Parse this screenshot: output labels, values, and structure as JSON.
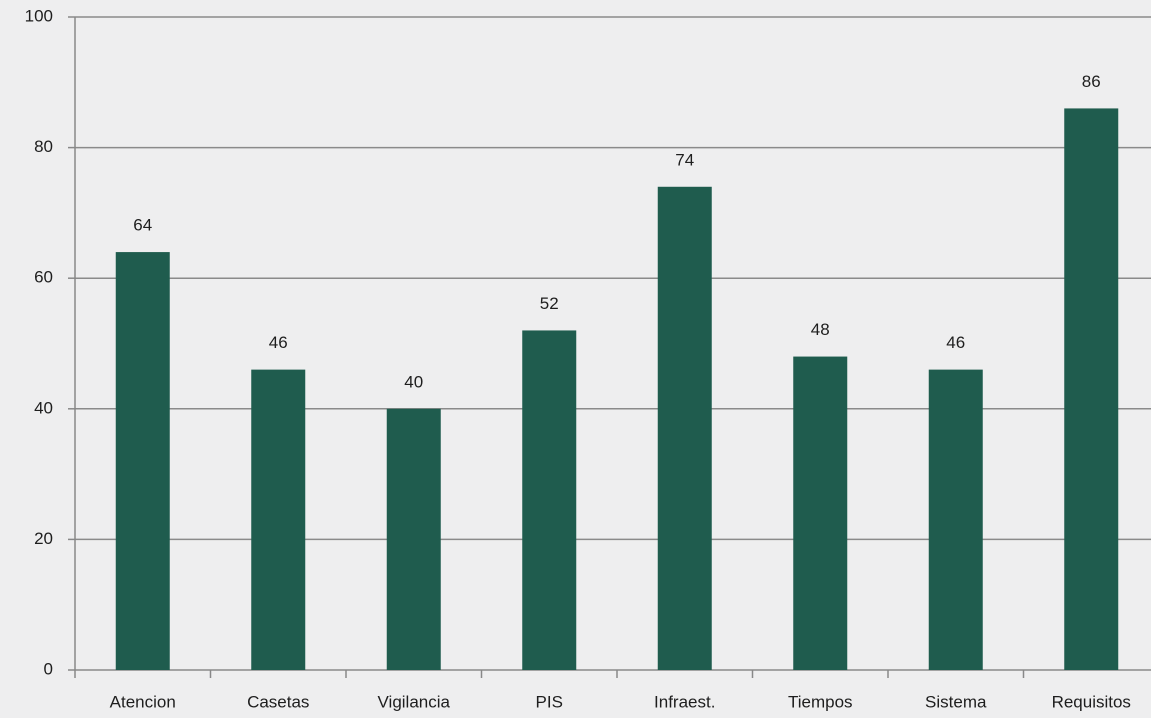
{
  "chart_data": {
    "type": "bar",
    "categories": [
      "Atencion",
      "Casetas",
      "Vigilancia",
      "PIS",
      "Infraest.",
      "Tiempos",
      "Sistema",
      "Requisitos"
    ],
    "values": [
      64,
      46,
      40,
      52,
      74,
      48,
      46,
      86
    ],
    "color": "#1f5c4e",
    "ylim": [
      0,
      100
    ],
    "yticks": [
      0,
      20,
      40,
      60,
      80,
      100
    ],
    "grid": true
  }
}
